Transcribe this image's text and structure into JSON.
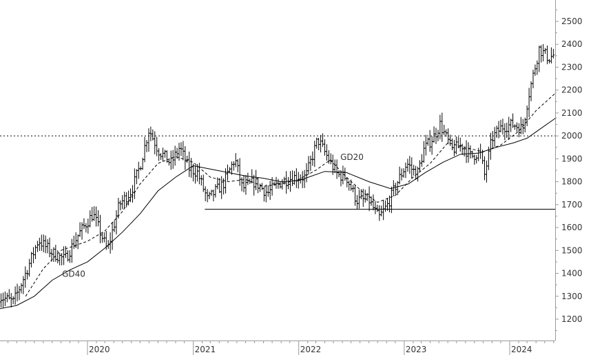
{
  "chart_data": {
    "type": "ohlc",
    "title": "",
    "xlabel": "",
    "ylabel": "",
    "ylim": [
      1100,
      2560
    ],
    "xlim": [
      "2019-03-01",
      "2024-06-15"
    ],
    "y_axis_side": "right",
    "y_ticks": [
      1200,
      1300,
      1400,
      1500,
      1600,
      1700,
      1800,
      1900,
      2000,
      2100,
      2200,
      2300,
      2400,
      2500
    ],
    "x_ticks": [
      {
        "label": "2020",
        "date": "2020-01-01"
      },
      {
        "label": "2021",
        "date": "2021-01-01"
      },
      {
        "label": "2022",
        "date": "2022-01-01"
      },
      {
        "label": "2023",
        "date": "2023-01-01"
      },
      {
        "label": "2024",
        "date": "2024-01-01"
      }
    ],
    "grid": false,
    "colors": {
      "price": "#000000",
      "axis": "#999999",
      "text": "#333333"
    },
    "price_anchors": [
      [
        "2019-03-01",
        1300
      ],
      [
        "2019-04-20",
        1275
      ],
      [
        "2019-06-01",
        1400
      ],
      [
        "2019-07-15",
        1545
      ],
      [
        "2019-09-01",
        1490
      ],
      [
        "2019-10-15",
        1460
      ],
      [
        "2019-12-01",
        1570
      ],
      [
        "2020-01-20",
        1660
      ],
      [
        "2020-03-10",
        1500
      ],
      [
        "2020-04-20",
        1700
      ],
      [
        "2020-06-01",
        1760
      ],
      [
        "2020-07-01",
        1870
      ],
      [
        "2020-08-01",
        2030
      ],
      [
        "2020-09-01",
        1940
      ],
      [
        "2020-10-15",
        1880
      ],
      [
        "2020-11-15",
        1950
      ],
      [
        "2020-12-15",
        1860
      ],
      [
        "2021-01-15",
        1840
      ],
      [
        "2021-02-20",
        1720
      ],
      [
        "2021-03-20",
        1760
      ],
      [
        "2021-04-15",
        1790
      ],
      [
        "2021-05-25",
        1900
      ],
      [
        "2021-06-20",
        1770
      ],
      [
        "2021-08-01",
        1800
      ],
      [
        "2021-09-15",
        1750
      ],
      [
        "2021-11-01",
        1800
      ],
      [
        "2021-12-15",
        1820
      ],
      [
        "2022-01-25",
        1820
      ],
      [
        "2022-03-08",
        1985
      ],
      [
        "2022-04-05",
        1920
      ],
      [
        "2022-05-15",
        1830
      ],
      [
        "2022-06-15",
        1820
      ],
      [
        "2022-07-20",
        1720
      ],
      [
        "2022-09-01",
        1720
      ],
      [
        "2022-10-05",
        1640
      ],
      [
        "2022-11-05",
        1700
      ],
      [
        "2022-12-05",
        1790
      ],
      [
        "2023-01-10",
        1880
      ],
      [
        "2023-02-15",
        1830
      ],
      [
        "2023-03-10",
        1940
      ],
      [
        "2023-04-15",
        2000
      ],
      [
        "2023-05-05",
        2050
      ],
      [
        "2023-06-15",
        1940
      ],
      [
        "2023-07-20",
        1960
      ],
      [
        "2023-08-20",
        1910
      ],
      [
        "2023-09-20",
        1930
      ],
      [
        "2023-10-06",
        1830
      ],
      [
        "2023-11-01",
        1990
      ],
      [
        "2023-12-05",
        2040
      ],
      [
        "2024-01-15",
        2050
      ],
      [
        "2024-02-15",
        2030
      ],
      [
        "2024-03-05",
        2170
      ],
      [
        "2024-04-12",
        2380
      ],
      [
        "2024-05-15",
        2340
      ],
      [
        "2024-06-10",
        2360
      ]
    ],
    "moving_averages": [
      {
        "name": "GD20",
        "style": "dashed",
        "points": [
          [
            "2019-06-01",
            1300
          ],
          [
            "2019-08-01",
            1420
          ],
          [
            "2019-10-01",
            1500
          ],
          [
            "2020-01-01",
            1540
          ],
          [
            "2020-03-01",
            1585
          ],
          [
            "2020-05-01",
            1670
          ],
          [
            "2020-07-01",
            1790
          ],
          [
            "2020-09-01",
            1880
          ],
          [
            "2020-11-01",
            1910
          ],
          [
            "2021-01-01",
            1885
          ],
          [
            "2021-03-01",
            1820
          ],
          [
            "2021-05-01",
            1800
          ],
          [
            "2021-07-01",
            1810
          ],
          [
            "2021-09-01",
            1780
          ],
          [
            "2021-11-01",
            1790
          ],
          [
            "2022-01-01",
            1810
          ],
          [
            "2022-03-01",
            1850
          ],
          [
            "2022-04-20",
            1895
          ],
          [
            "2022-06-15",
            1820
          ],
          [
            "2022-08-15",
            1750
          ],
          [
            "2022-10-01",
            1710
          ],
          [
            "2022-12-01",
            1740
          ],
          [
            "2023-02-01",
            1820
          ],
          [
            "2023-04-01",
            1880
          ],
          [
            "2023-06-01",
            1970
          ],
          [
            "2023-08-01",
            1950
          ],
          [
            "2023-10-01",
            1930
          ],
          [
            "2023-12-01",
            1960
          ],
          [
            "2024-02-01",
            2020
          ],
          [
            "2024-04-01",
            2110
          ],
          [
            "2024-06-10",
            2190
          ]
        ]
      },
      {
        "name": "GD40",
        "style": "solid",
        "points": [
          [
            "2019-03-01",
            1245
          ],
          [
            "2019-05-01",
            1260
          ],
          [
            "2019-07-01",
            1300
          ],
          [
            "2019-09-01",
            1370
          ],
          [
            "2019-11-01",
            1415
          ],
          [
            "2020-01-01",
            1450
          ],
          [
            "2020-03-01",
            1510
          ],
          [
            "2020-05-01",
            1580
          ],
          [
            "2020-07-01",
            1660
          ],
          [
            "2020-09-01",
            1760
          ],
          [
            "2020-11-01",
            1820
          ],
          [
            "2021-01-01",
            1870
          ],
          [
            "2021-03-01",
            1855
          ],
          [
            "2021-05-01",
            1840
          ],
          [
            "2021-07-01",
            1825
          ],
          [
            "2021-09-01",
            1815
          ],
          [
            "2021-11-01",
            1800
          ],
          [
            "2022-01-01",
            1805
          ],
          [
            "2022-04-01",
            1845
          ],
          [
            "2022-06-15",
            1840
          ],
          [
            "2022-09-01",
            1800
          ],
          [
            "2022-11-15",
            1770
          ],
          [
            "2023-01-15",
            1790
          ],
          [
            "2023-03-15",
            1840
          ],
          [
            "2023-05-15",
            1885
          ],
          [
            "2023-07-15",
            1920
          ],
          [
            "2023-09-15",
            1925
          ],
          [
            "2023-11-15",
            1950
          ],
          [
            "2024-01-15",
            1970
          ],
          [
            "2024-03-01",
            1990
          ],
          [
            "2024-04-15",
            2030
          ],
          [
            "2024-06-10",
            2080
          ]
        ]
      }
    ],
    "reference_lines": [
      {
        "kind": "horizontal",
        "style": "dotted",
        "value": 2000,
        "x_start": "2019-03-01",
        "x_end": "2024-06-15"
      },
      {
        "kind": "horizontal",
        "style": "solid",
        "value": 1680,
        "x_start": "2021-02-10",
        "x_end": "2024-06-15"
      }
    ],
    "annotations": [
      {
        "text": "GD20",
        "date": "2022-05-25",
        "value": 1895
      },
      {
        "text": "GD40",
        "date": "2019-10-05",
        "value": 1385
      }
    ]
  }
}
